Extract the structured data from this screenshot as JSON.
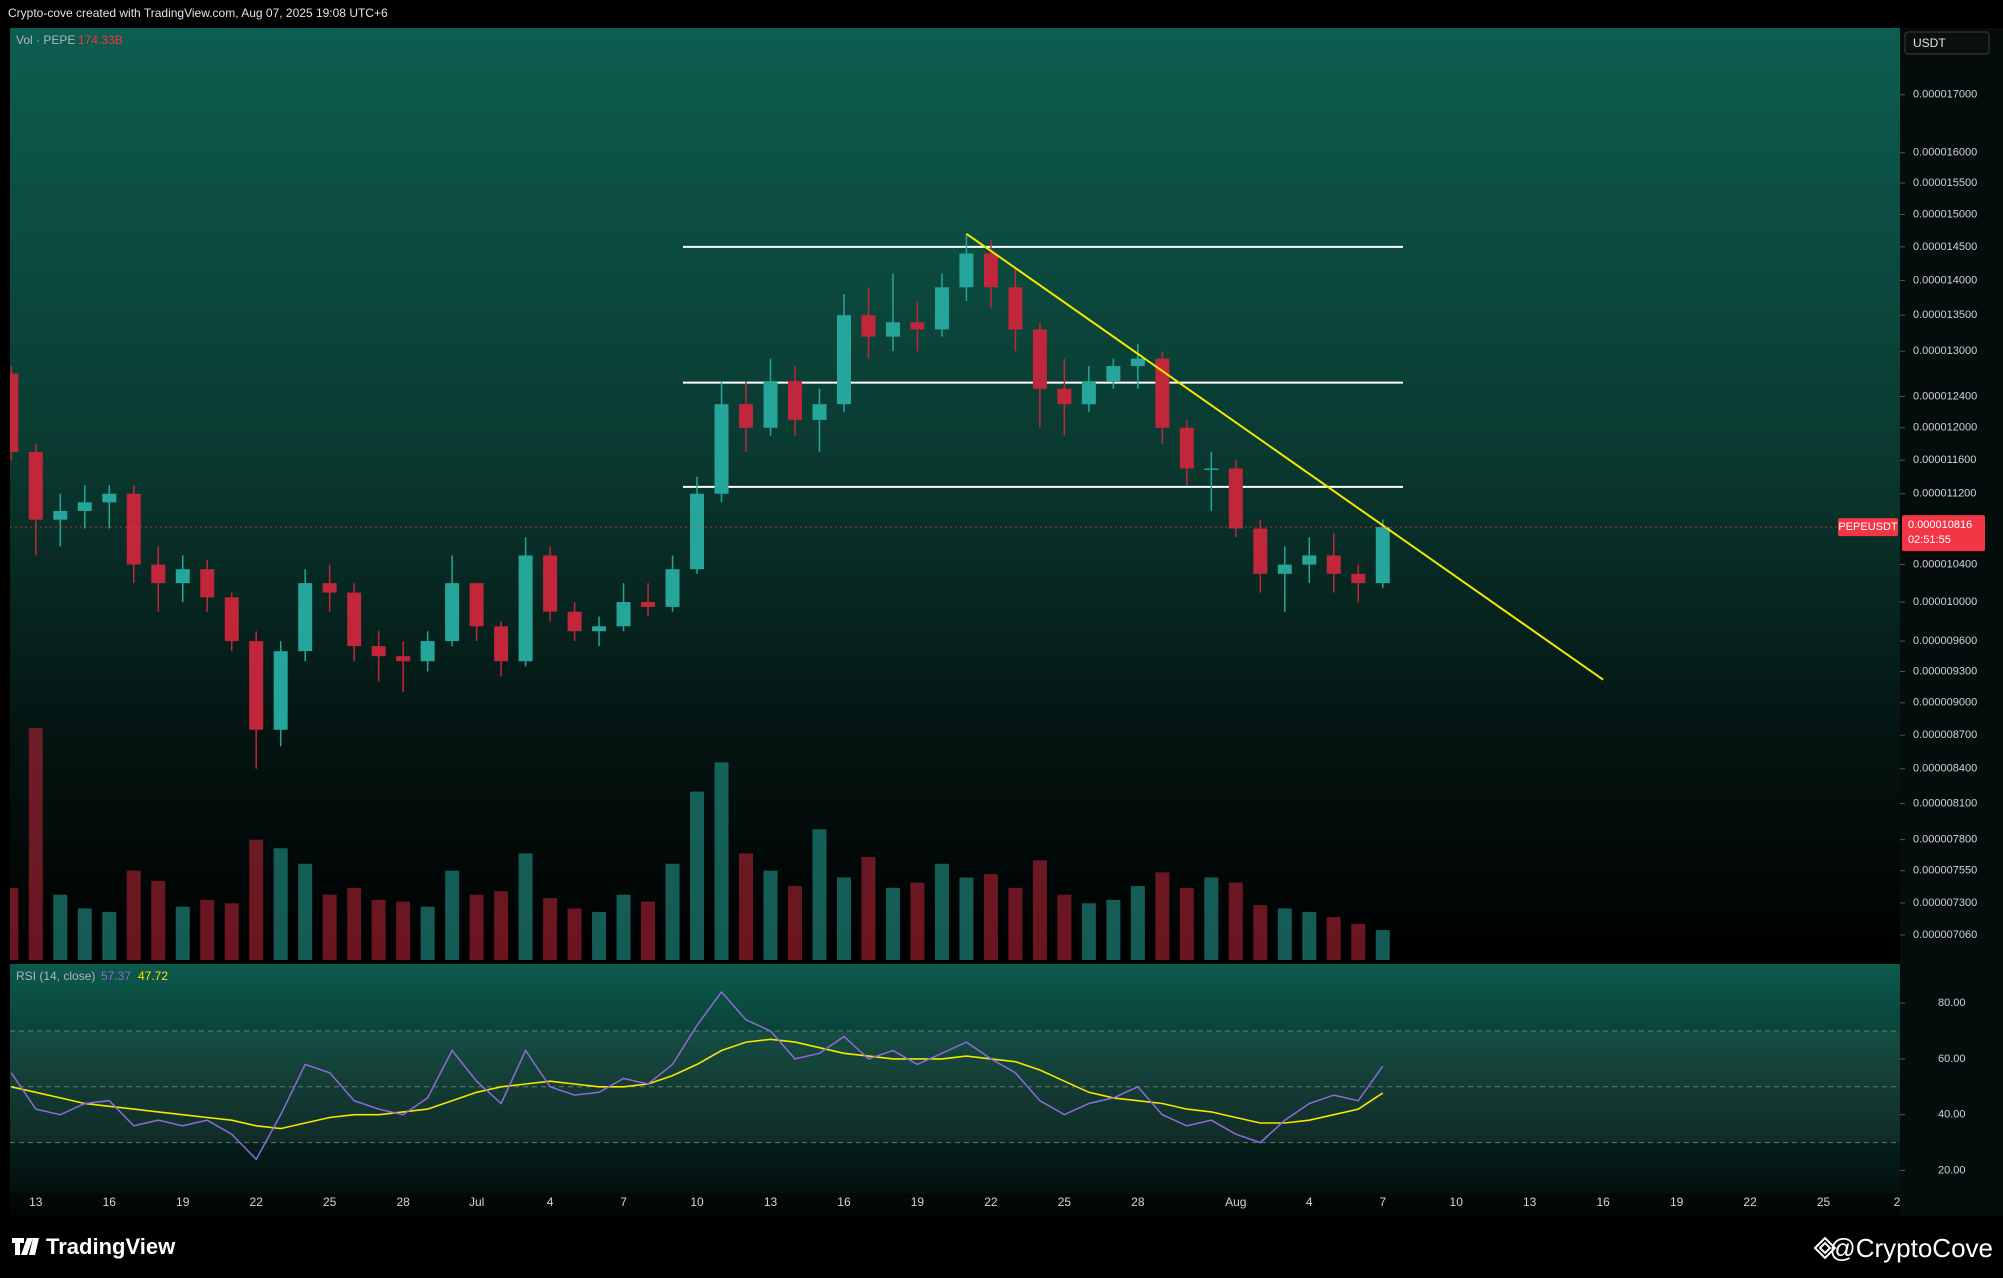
{
  "header": "Crypto-cove created with TradingView.com, Aug 07, 2025 19:08 UTC+6",
  "footer": {
    "brand": "TradingView",
    "author": "@CryptoCove"
  },
  "chart_data": [
    {
      "type": "candlestick",
      "currency": "USDT",
      "symbol": "PEPEUSDT",
      "countdown": "02:51:55",
      "log_scale": true,
      "up_color": "#26a69a",
      "down_color": "#c2263a",
      "x": [
        "Jun 12",
        "Jun 13",
        "Jun 14",
        "Jun 15",
        "Jun 16",
        "Jun 17",
        "Jun 18",
        "Jun 19",
        "Jun 20",
        "Jun 21",
        "Jun 22",
        "Jun 23",
        "Jun 24",
        "Jun 25",
        "Jun 26",
        "Jun 27",
        "Jun 28",
        "Jun 29",
        "Jun 30",
        "Jul 1",
        "Jul 2",
        "Jul 3",
        "Jul 4",
        "Jul 5",
        "Jul 6",
        "Jul 7",
        "Jul 8",
        "Jul 9",
        "Jul 10",
        "Jul 11",
        "Jul 12",
        "Jul 13",
        "Jul 14",
        "Jul 15",
        "Jul 16",
        "Jul 17",
        "Jul 18",
        "Jul 19",
        "Jul 20",
        "Jul 21",
        "Jul 22",
        "Jul 23",
        "Jul 24",
        "Jul 25",
        "Jul 26",
        "Jul 27",
        "Jul 28",
        "Jul 29",
        "Jul 30",
        "Jul 31",
        "Aug 1",
        "Aug 2",
        "Aug 3",
        "Aug 4",
        "Aug 5",
        "Aug 6",
        "Aug 7"
      ],
      "open": [
        1.27e-05,
        1.17e-05,
        1.09e-05,
        1.1e-05,
        1.11e-05,
        1.12e-05,
        1.04e-05,
        1.02e-05,
        1.035e-05,
        1.005e-05,
        9.6e-06,
        8.75e-06,
        9.5e-06,
        1.02e-05,
        1.01e-05,
        9.55e-06,
        9.45e-06,
        9.4e-06,
        9.6e-06,
        1.02e-05,
        9.75e-06,
        9.4e-06,
        1.05e-05,
        9.9e-06,
        9.7e-06,
        9.75e-06,
        1e-05,
        9.95e-06,
        1.035e-05,
        1.12e-05,
        1.23e-05,
        1.2e-05,
        1.26e-05,
        1.21e-05,
        1.23e-05,
        1.35e-05,
        1.32e-05,
        1.34e-05,
        1.33e-05,
        1.39e-05,
        1.44e-05,
        1.39e-05,
        1.33e-05,
        1.25e-05,
        1.23e-05,
        1.26e-05,
        1.28e-05,
        1.29e-05,
        1.2e-05,
        1.15e-05,
        1.15e-05,
        1.08e-05,
        1.03e-05,
        1.04e-05,
        1.05e-05,
        1.03e-05,
        1.02e-05
      ],
      "high": [
        1.28e-05,
        1.18e-05,
        1.12e-05,
        1.13e-05,
        1.13e-05,
        1.13e-05,
        1.06e-05,
        1.05e-05,
        1.045e-05,
        1.01e-05,
        9.7e-06,
        9.6e-06,
        1.035e-05,
        1.04e-05,
        1.02e-05,
        9.7e-06,
        9.6e-06,
        9.7e-06,
        1.05e-05,
        1.02e-05,
        9.8e-06,
        1.07e-05,
        1.06e-05,
        1e-05,
        9.85e-06,
        1.02e-05,
        1.02e-05,
        1.05e-05,
        1.14e-05,
        1.26e-05,
        1.26e-05,
        1.29e-05,
        1.28e-05,
        1.25e-05,
        1.38e-05,
        1.39e-05,
        1.41e-05,
        1.37e-05,
        1.41e-05,
        1.47e-05,
        1.46e-05,
        1.42e-05,
        1.34e-05,
        1.29e-05,
        1.28e-05,
        1.29e-05,
        1.31e-05,
        1.3e-05,
        1.21e-05,
        1.17e-05,
        1.16e-05,
        1.09e-05,
        1.06e-05,
        1.07e-05,
        1.075e-05,
        1.04e-05,
        1.09e-05
      ],
      "low": [
        1.16e-05,
        1.05e-05,
        1.06e-05,
        1.08e-05,
        1.08e-05,
        1.02e-05,
        9.9e-06,
        1e-05,
        9.9e-06,
        9.5e-06,
        8.4e-06,
        8.6e-06,
        9.4e-06,
        9.9e-06,
        9.4e-06,
        9.2e-06,
        9.1e-06,
        9.3e-06,
        9.55e-06,
        9.6e-06,
        9.25e-06,
        9.35e-06,
        9.8e-06,
        9.6e-06,
        9.55e-06,
        9.7e-06,
        9.85e-06,
        9.9e-06,
        1.03e-05,
        1.11e-05,
        1.17e-05,
        1.19e-05,
        1.19e-05,
        1.17e-05,
        1.22e-05,
        1.29e-05,
        1.3e-05,
        1.3e-05,
        1.32e-05,
        1.37e-05,
        1.36e-05,
        1.3e-05,
        1.2e-05,
        1.19e-05,
        1.22e-05,
        1.25e-05,
        1.25e-05,
        1.18e-05,
        1.13e-05,
        1.1e-05,
        1.07e-05,
        1.01e-05,
        9.9e-06,
        1.02e-05,
        1.01e-05,
        1e-05,
        1.015e-05
      ],
      "close": [
        1.17e-05,
        1.09e-05,
        1.1e-05,
        1.11e-05,
        1.12e-05,
        1.04e-05,
        1.02e-05,
        1.035e-05,
        1.005e-05,
        9.6e-06,
        8.75e-06,
        9.5e-06,
        1.02e-05,
        1.01e-05,
        9.55e-06,
        9.45e-06,
        9.4e-06,
        9.6e-06,
        1.02e-05,
        9.75e-06,
        9.4e-06,
        1.05e-05,
        9.9e-06,
        9.7e-06,
        9.75e-06,
        1e-05,
        9.95e-06,
        1.035e-05,
        1.12e-05,
        1.23e-05,
        1.2e-05,
        1.26e-05,
        1.21e-05,
        1.23e-05,
        1.35e-05,
        1.32e-05,
        1.34e-05,
        1.33e-05,
        1.39e-05,
        1.44e-05,
        1.39e-05,
        1.33e-05,
        1.25e-05,
        1.23e-05,
        1.26e-05,
        1.28e-05,
        1.29e-05,
        1.2e-05,
        1.15e-05,
        1.15e-05,
        1.08e-05,
        1.03e-05,
        1.04e-05,
        1.05e-05,
        1.03e-05,
        1.02e-05,
        1.0816e-05
      ],
      "volume": {
        "name": "Vol · PEPE",
        "last_value_label": "174.33B",
        "values": [
          420,
          1350,
          380,
          300,
          280,
          520,
          460,
          310,
          350,
          330,
          700,
          650,
          560,
          380,
          420,
          350,
          340,
          310,
          520,
          380,
          400,
          620,
          360,
          300,
          280,
          380,
          340,
          560,
          980,
          1150,
          620,
          520,
          430,
          760,
          480,
          600,
          420,
          450,
          560,
          480,
          500,
          420,
          580,
          380,
          330,
          350,
          430,
          510,
          420,
          480,
          450,
          320,
          300,
          280,
          250,
          210,
          174.33
        ]
      },
      "levels": [
        1.45e-05,
        1.258e-05,
        1.128e-05
      ],
      "level_color": "#ffffff",
      "trendline": {
        "x": [
          "Jul 21",
          "Aug 16"
        ],
        "values": [
          1.47e-05,
          9.22e-06
        ],
        "color": "#f5e700"
      },
      "ylim": [
        6.87e-06,
        1.823e-05
      ],
      "yticks": [
        {
          "value": 1.7e-05,
          "label": "0.000017000"
        },
        {
          "value": 1.6e-05,
          "label": "0.000016000"
        },
        {
          "value": 1.55e-05,
          "label": "0.000015500"
        },
        {
          "value": 1.5e-05,
          "label": "0.000015000"
        },
        {
          "value": 1.45e-05,
          "label": "0.000014500"
        },
        {
          "value": 1.4e-05,
          "label": "0.000014000"
        },
        {
          "value": 1.35e-05,
          "label": "0.000013500"
        },
        {
          "value": 1.3e-05,
          "label": "0.000013000"
        },
        {
          "value": 1.24e-05,
          "label": "0.000012400"
        },
        {
          "value": 1.2e-05,
          "label": "0.000012000"
        },
        {
          "value": 1.16e-05,
          "label": "0.000011600"
        },
        {
          "value": 1.12e-05,
          "label": "0.000011200"
        },
        {
          "value": 1.04e-05,
          "label": "0.000010400"
        },
        {
          "value": 1e-05,
          "label": "0.000010000"
        },
        {
          "value": 9.6e-06,
          "label": "0.000009600"
        },
        {
          "value": 9.3e-06,
          "label": "0.000009300"
        },
        {
          "value": 9e-06,
          "label": "0.000009000"
        },
        {
          "value": 8.7e-06,
          "label": "0.000008700"
        },
        {
          "value": 8.4e-06,
          "label": "0.000008400"
        },
        {
          "value": 8.1e-06,
          "label": "0.000008100"
        },
        {
          "value": 7.8e-06,
          "label": "0.000007800"
        },
        {
          "value": 7.55e-06,
          "label": "0.000007550"
        },
        {
          "value": 7.3e-06,
          "label": "0.000007300"
        },
        {
          "value": 7.06e-06,
          "label": "0.000007060"
        }
      ],
      "xticks": [
        {
          "value": "Jun 13",
          "label": "13"
        },
        {
          "value": "Jun 16",
          "label": "16"
        },
        {
          "value": "Jun 19",
          "label": "19"
        },
        {
          "value": "Jun 22",
          "label": "22"
        },
        {
          "value": "Jun 25",
          "label": "25"
        },
        {
          "value": "Jun 28",
          "label": "28"
        },
        {
          "value": "Jul 1",
          "label": "Jul"
        },
        {
          "value": "Jul 4",
          "label": "4"
        },
        {
          "value": "Jul 7",
          "label": "7"
        },
        {
          "value": "Jul 10",
          "label": "10"
        },
        {
          "value": "Jul 13",
          "label": "13"
        },
        {
          "value": "Jul 16",
          "label": "16"
        },
        {
          "value": "Jul 19",
          "label": "19"
        },
        {
          "value": "Jul 22",
          "label": "22"
        },
        {
          "value": "Jul 25",
          "label": "25"
        },
        {
          "value": "Jul 28",
          "label": "28"
        },
        {
          "value": "Aug 1",
          "label": "Aug"
        },
        {
          "value": "Aug 4",
          "label": "4"
        },
        {
          "value": "Aug 7",
          "label": "7"
        },
        {
          "value": "Aug 10",
          "label": "10"
        },
        {
          "value": "Aug 13",
          "label": "13"
        },
        {
          "value": "Aug 16",
          "label": "16"
        },
        {
          "value": "Aug 19",
          "label": "19"
        },
        {
          "value": "Aug 22",
          "label": "22"
        },
        {
          "value": "Aug 25",
          "label": "25"
        },
        {
          "value": "Aug 28",
          "label": "2"
        }
      ]
    },
    {
      "type": "line",
      "title": "RSI (14, close)",
      "x": [
        "Jun 12",
        "Jun 13",
        "Jun 14",
        "Jun 15",
        "Jun 16",
        "Jun 17",
        "Jun 18",
        "Jun 19",
        "Jun 20",
        "Jun 21",
        "Jun 22",
        "Jun 23",
        "Jun 24",
        "Jun 25",
        "Jun 26",
        "Jun 27",
        "Jun 28",
        "Jun 29",
        "Jun 30",
        "Jul 1",
        "Jul 2",
        "Jul 3",
        "Jul 4",
        "Jul 5",
        "Jul 6",
        "Jul 7",
        "Jul 8",
        "Jul 9",
        "Jul 10",
        "Jul 11",
        "Jul 12",
        "Jul 13",
        "Jul 14",
        "Jul 15",
        "Jul 16",
        "Jul 17",
        "Jul 18",
        "Jul 19",
        "Jul 20",
        "Jul 21",
        "Jul 22",
        "Jul 23",
        "Jul 24",
        "Jul 25",
        "Jul 26",
        "Jul 27",
        "Jul 28",
        "Jul 29",
        "Jul 30",
        "Jul 31",
        "Aug 1",
        "Aug 2",
        "Aug 3",
        "Aug 4",
        "Aug 5",
        "Aug 6",
        "Aug 7"
      ],
      "series": [
        {
          "color": "#8e6bd6",
          "values": [
            55,
            42,
            40,
            44,
            45,
            36,
            38,
            36,
            38,
            33,
            24,
            40,
            58,
            55,
            45,
            42,
            40,
            46,
            63,
            52,
            44,
            63,
            50,
            47,
            48,
            53,
            51,
            58,
            72,
            84,
            74,
            70,
            60,
            62,
            68,
            60,
            63,
            58,
            62,
            66,
            60,
            55,
            45,
            40,
            44,
            46,
            50,
            40,
            36,
            38,
            33,
            30,
            38,
            44,
            47,
            45,
            57.37
          ]
        },
        {
          "color": "#f5e700",
          "values": [
            50,
            48,
            46,
            44,
            43,
            42,
            41,
            40,
            39,
            38,
            36,
            35,
            37,
            39,
            40,
            40,
            41,
            42,
            45,
            48,
            50,
            51,
            52,
            51,
            50,
            50,
            51,
            54,
            58,
            63,
            66,
            67,
            66,
            64,
            62,
            61,
            60,
            60,
            60,
            61,
            60,
            59,
            56,
            52,
            48,
            46,
            45,
            44,
            42,
            41,
            39,
            37,
            37,
            38,
            40,
            42,
            47.72
          ]
        }
      ],
      "bands": [
        30,
        50,
        70
      ],
      "ylim": [
        13,
        94
      ],
      "yticks": [
        {
          "value": 80,
          "label": "80.00"
        },
        {
          "value": 60,
          "label": "60.00"
        },
        {
          "value": 40,
          "label": "40.00"
        },
        {
          "value": 20,
          "label": "20.00"
        }
      ]
    }
  ]
}
